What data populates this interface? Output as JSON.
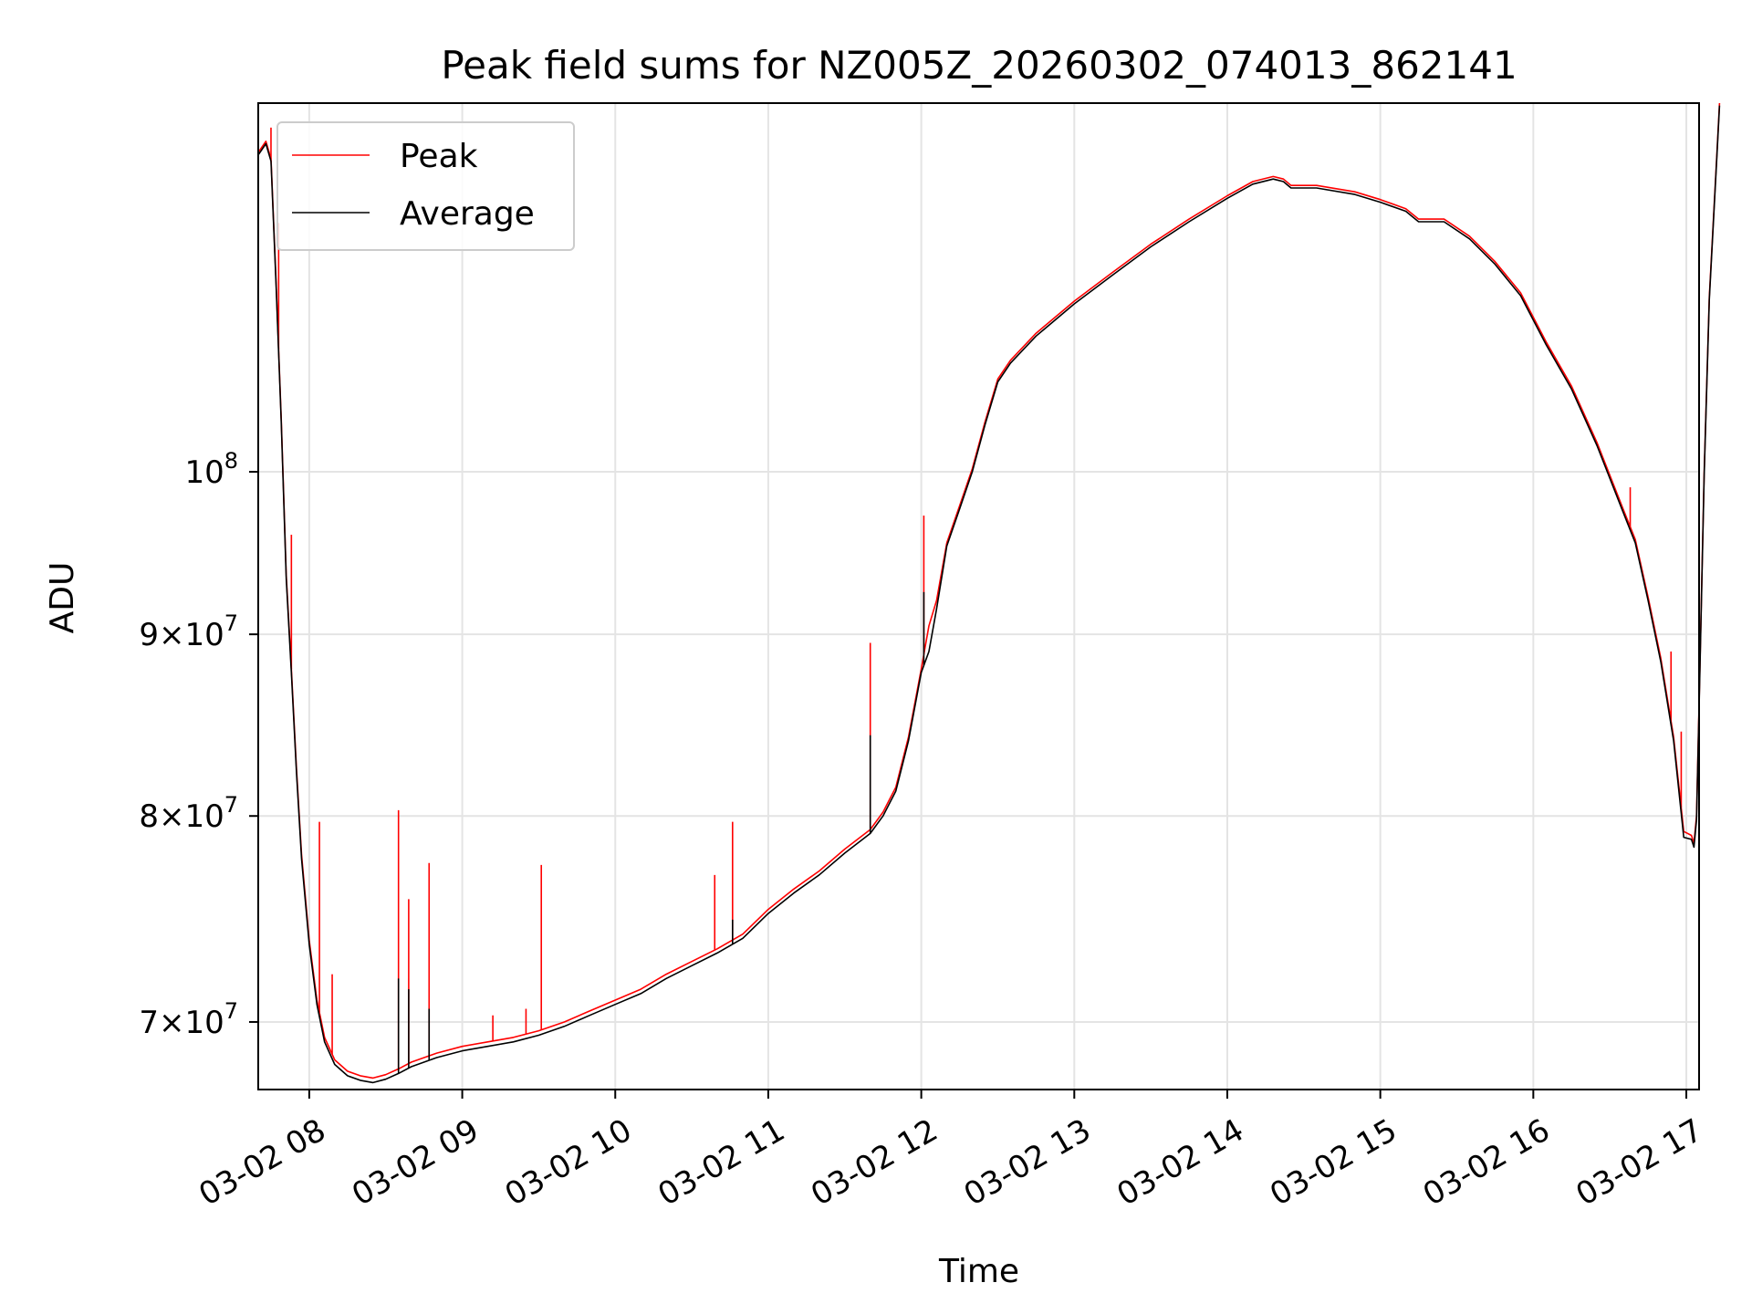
{
  "chart_data": {
    "type": "line",
    "title": "Peak field sums for NZ005Z_20260302_074013_862141",
    "xlabel": "Time",
    "ylabel": "ADU",
    "y_scale": "log",
    "ylim": [
      67000000,
      127000000
    ],
    "xlim": [
      "2026-03-02 07:40",
      "2026-03-02 17:05"
    ],
    "grid": true,
    "legend_position": "top-left",
    "x_ticks": [
      {
        "t": "2026-03-02 08:00",
        "label": "03-02 08"
      },
      {
        "t": "2026-03-02 09:00",
        "label": "03-02 09"
      },
      {
        "t": "2026-03-02 10:00",
        "label": "03-02 10"
      },
      {
        "t": "2026-03-02 11:00",
        "label": "03-02 11"
      },
      {
        "t": "2026-03-02 12:00",
        "label": "03-02 12"
      },
      {
        "t": "2026-03-02 13:00",
        "label": "03-02 13"
      },
      {
        "t": "2026-03-02 14:00",
        "label": "03-02 14"
      },
      {
        "t": "2026-03-02 15:00",
        "label": "03-02 15"
      },
      {
        "t": "2026-03-02 16:00",
        "label": "03-02 16"
      },
      {
        "t": "2026-03-02 17:00",
        "label": "03-02 17"
      }
    ],
    "y_ticks": [
      {
        "v": 70000000,
        "mant": "7",
        "exp": "7"
      },
      {
        "v": 80000000,
        "mant": "8",
        "exp": "7"
      },
      {
        "v": 90000000,
        "mant": "9",
        "exp": "7"
      },
      {
        "v": 100000000,
        "mant": "",
        "exp": "8"
      }
    ],
    "series": [
      {
        "name": "Peak",
        "color": "#ff0000",
        "points": [
          [
            "2026-03-02 07:40",
            123000000
          ],
          [
            "2026-03-02 07:43",
            123900000
          ],
          [
            "2026-03-02 07:45",
            122500000
          ],
          [
            "2026-03-02 07:47",
            113000000
          ],
          [
            "2026-03-02 07:49",
            103500000
          ],
          [
            "2026-03-02 07:51",
            93500000
          ],
          [
            "2026-03-02 07:53",
            88000000
          ],
          [
            "2026-03-02 07:55",
            82500000
          ],
          [
            "2026-03-02 07:57",
            78000000
          ],
          [
            "2026-03-02 08:00",
            73800000
          ],
          [
            "2026-03-02 08:03",
            71000000
          ],
          [
            "2026-03-02 08:06",
            69300000
          ],
          [
            "2026-03-02 08:10",
            68300000
          ],
          [
            "2026-03-02 08:15",
            67800000
          ],
          [
            "2026-03-02 08:20",
            67600000
          ],
          [
            "2026-03-02 08:25",
            67500000
          ],
          [
            "2026-03-02 08:30",
            67650000
          ],
          [
            "2026-03-02 08:35",
            67900000
          ],
          [
            "2026-03-02 08:40",
            68200000
          ],
          [
            "2026-03-02 08:50",
            68600000
          ],
          [
            "2026-03-02 09:00",
            68900000
          ],
          [
            "2026-03-02 09:10",
            69100000
          ],
          [
            "2026-03-02 09:20",
            69300000
          ],
          [
            "2026-03-02 09:30",
            69600000
          ],
          [
            "2026-03-02 09:40",
            70000000
          ],
          [
            "2026-03-02 09:50",
            70500000
          ],
          [
            "2026-03-02 10:00",
            71000000
          ],
          [
            "2026-03-02 10:10",
            71500000
          ],
          [
            "2026-03-02 10:20",
            72200000
          ],
          [
            "2026-03-02 10:30",
            72800000
          ],
          [
            "2026-03-02 10:40",
            73400000
          ],
          [
            "2026-03-02 10:50",
            74100000
          ],
          [
            "2026-03-02 11:00",
            75300000
          ],
          [
            "2026-03-02 11:10",
            76300000
          ],
          [
            "2026-03-02 11:20",
            77200000
          ],
          [
            "2026-03-02 11:30",
            78300000
          ],
          [
            "2026-03-02 11:40",
            79300000
          ],
          [
            "2026-03-02 11:45",
            80200000
          ],
          [
            "2026-03-02 11:50",
            81500000
          ],
          [
            "2026-03-02 11:55",
            84200000
          ],
          [
            "2026-03-02 12:00",
            88000000
          ],
          [
            "2026-03-02 12:03",
            90500000
          ],
          [
            "2026-03-02 12:06",
            92000000
          ],
          [
            "2026-03-02 12:10",
            95500000
          ],
          [
            "2026-03-02 12:15",
            97800000
          ],
          [
            "2026-03-02 12:20",
            100200000
          ],
          [
            "2026-03-02 12:25",
            103300000
          ],
          [
            "2026-03-02 12:30",
            106200000
          ],
          [
            "2026-03-02 12:35",
            107500000
          ],
          [
            "2026-03-02 12:45",
            109400000
          ],
          [
            "2026-03-02 13:00",
            111700000
          ],
          [
            "2026-03-02 13:15",
            113800000
          ],
          [
            "2026-03-02 13:30",
            115900000
          ],
          [
            "2026-03-02 13:45",
            117800000
          ],
          [
            "2026-03-02 14:00",
            119600000
          ],
          [
            "2026-03-02 14:10",
            120700000
          ],
          [
            "2026-03-02 14:18",
            121100000
          ],
          [
            "2026-03-02 14:22",
            120900000
          ],
          [
            "2026-03-02 14:25",
            120400000
          ],
          [
            "2026-03-02 14:35",
            120400000
          ],
          [
            "2026-03-02 14:50",
            119900000
          ],
          [
            "2026-03-02 15:00",
            119300000
          ],
          [
            "2026-03-02 15:10",
            118600000
          ],
          [
            "2026-03-02 15:15",
            117800000
          ],
          [
            "2026-03-02 15:25",
            117800000
          ],
          [
            "2026-03-02 15:35",
            116500000
          ],
          [
            "2026-03-02 15:45",
            114600000
          ],
          [
            "2026-03-02 15:55",
            112300000
          ],
          [
            "2026-03-02 16:05",
            108800000
          ],
          [
            "2026-03-02 16:15",
            105700000
          ],
          [
            "2026-03-02 16:25",
            101900000
          ],
          [
            "2026-03-02 16:35",
            97700000
          ],
          [
            "2026-03-02 16:40",
            95700000
          ],
          [
            "2026-03-02 16:45",
            92200000
          ],
          [
            "2026-03-02 16:50",
            88600000
          ],
          [
            "2026-03-02 16:55",
            84200000
          ],
          [
            "2026-03-02 16:59",
            79200000
          ],
          [
            "2026-03-02 17:02",
            79000000
          ],
          [
            "2026-03-02 17:03",
            78600000
          ],
          [
            "2026-03-02 17:04",
            80000000
          ],
          [
            "2026-03-02 17:05",
            86000000
          ],
          [
            "2026-03-02 17:07",
            100000000
          ],
          [
            "2026-03-02 17:09",
            112000000
          ],
          [
            "2026-03-02 17:12",
            123000000
          ],
          [
            "2026-03-02 17:13",
            127000000
          ]
        ],
        "spikes": [
          [
            "2026-03-02 07:45",
            125000000
          ],
          [
            "2026-03-02 07:48",
            117500000
          ],
          [
            "2026-03-02 07:53",
            96000000
          ],
          [
            "2026-03-02 08:04",
            79700000
          ],
          [
            "2026-03-02 08:09",
            72200000
          ],
          [
            "2026-03-02 08:35",
            80300000
          ],
          [
            "2026-03-02 08:39",
            75800000
          ],
          [
            "2026-03-02 08:47",
            77600000
          ],
          [
            "2026-03-02 09:12",
            70300000
          ],
          [
            "2026-03-02 09:25",
            70600000
          ],
          [
            "2026-03-02 09:31",
            77500000
          ],
          [
            "2026-03-02 10:39",
            77000000
          ],
          [
            "2026-03-02 10:46",
            79700000
          ],
          [
            "2026-03-02 11:40",
            89500000
          ],
          [
            "2026-03-02 12:01",
            97200000
          ],
          [
            "2026-03-02 16:38",
            99000000
          ],
          [
            "2026-03-02 16:54",
            89000000
          ],
          [
            "2026-03-02 16:58",
            84500000
          ]
        ]
      },
      {
        "name": "Average",
        "color": "#000000",
        "points": [
          [
            "2026-03-02 07:40",
            122800000
          ],
          [
            "2026-03-02 07:43",
            123700000
          ],
          [
            "2026-03-02 07:45",
            122300000
          ],
          [
            "2026-03-02 07:47",
            112800000
          ],
          [
            "2026-03-02 07:49",
            103300000
          ],
          [
            "2026-03-02 07:51",
            93300000
          ],
          [
            "2026-03-02 07:53",
            87800000
          ],
          [
            "2026-03-02 07:55",
            82300000
          ],
          [
            "2026-03-02 07:57",
            77800000
          ],
          [
            "2026-03-02 08:00",
            73600000
          ],
          [
            "2026-03-02 08:03",
            70800000
          ],
          [
            "2026-03-02 08:06",
            69100000
          ],
          [
            "2026-03-02 08:10",
            68100000
          ],
          [
            "2026-03-02 08:15",
            67600000
          ],
          [
            "2026-03-02 08:20",
            67400000
          ],
          [
            "2026-03-02 08:25",
            67300000
          ],
          [
            "2026-03-02 08:30",
            67450000
          ],
          [
            "2026-03-02 08:35",
            67700000
          ],
          [
            "2026-03-02 08:40",
            68000000
          ],
          [
            "2026-03-02 08:50",
            68400000
          ],
          [
            "2026-03-02 09:00",
            68700000
          ],
          [
            "2026-03-02 09:10",
            68900000
          ],
          [
            "2026-03-02 09:20",
            69100000
          ],
          [
            "2026-03-02 09:30",
            69400000
          ],
          [
            "2026-03-02 09:40",
            69800000
          ],
          [
            "2026-03-02 09:50",
            70300000
          ],
          [
            "2026-03-02 10:00",
            70800000
          ],
          [
            "2026-03-02 10:10",
            71300000
          ],
          [
            "2026-03-02 10:20",
            72000000
          ],
          [
            "2026-03-02 10:30",
            72600000
          ],
          [
            "2026-03-02 10:40",
            73200000
          ],
          [
            "2026-03-02 10:50",
            73900000
          ],
          [
            "2026-03-02 11:00",
            75100000
          ],
          [
            "2026-03-02 11:10",
            76100000
          ],
          [
            "2026-03-02 11:20",
            77000000
          ],
          [
            "2026-03-02 11:30",
            78100000
          ],
          [
            "2026-03-02 11:40",
            79100000
          ],
          [
            "2026-03-02 11:45",
            80000000
          ],
          [
            "2026-03-02 11:50",
            81300000
          ],
          [
            "2026-03-02 11:55",
            84000000
          ],
          [
            "2026-03-02 12:00",
            87800000
          ],
          [
            "2026-03-02 12:03",
            89000000
          ],
          [
            "2026-03-02 12:06",
            91500000
          ],
          [
            "2026-03-02 12:10",
            95300000
          ],
          [
            "2026-03-02 12:15",
            97600000
          ],
          [
            "2026-03-02 12:20",
            100000000
          ],
          [
            "2026-03-02 12:25",
            103100000
          ],
          [
            "2026-03-02 12:30",
            106000000
          ],
          [
            "2026-03-02 12:35",
            107300000
          ],
          [
            "2026-03-02 12:45",
            109200000
          ],
          [
            "2026-03-02 13:00",
            111500000
          ],
          [
            "2026-03-02 13:15",
            113600000
          ],
          [
            "2026-03-02 13:30",
            115700000
          ],
          [
            "2026-03-02 13:45",
            117600000
          ],
          [
            "2026-03-02 14:00",
            119400000
          ],
          [
            "2026-03-02 14:10",
            120500000
          ],
          [
            "2026-03-02 14:18",
            120900000
          ],
          [
            "2026-03-02 14:22",
            120700000
          ],
          [
            "2026-03-02 14:25",
            120200000
          ],
          [
            "2026-03-02 14:35",
            120200000
          ],
          [
            "2026-03-02 14:50",
            119700000
          ],
          [
            "2026-03-02 15:00",
            119100000
          ],
          [
            "2026-03-02 15:10",
            118400000
          ],
          [
            "2026-03-02 15:15",
            117600000
          ],
          [
            "2026-03-02 15:25",
            117600000
          ],
          [
            "2026-03-02 15:35",
            116300000
          ],
          [
            "2026-03-02 15:45",
            114400000
          ],
          [
            "2026-03-02 15:55",
            112100000
          ],
          [
            "2026-03-02 16:05",
            108600000
          ],
          [
            "2026-03-02 16:15",
            105500000
          ],
          [
            "2026-03-02 16:25",
            101700000
          ],
          [
            "2026-03-02 16:35",
            97500000
          ],
          [
            "2026-03-02 16:40",
            95500000
          ],
          [
            "2026-03-02 16:45",
            92000000
          ],
          [
            "2026-03-02 16:50",
            88400000
          ],
          [
            "2026-03-02 16:55",
            84000000
          ],
          [
            "2026-03-02 16:59",
            78900000
          ],
          [
            "2026-03-02 17:02",
            78800000
          ],
          [
            "2026-03-02 17:03",
            78400000
          ],
          [
            "2026-03-02 17:04",
            79800000
          ],
          [
            "2026-03-02 17:05",
            85800000
          ],
          [
            "2026-03-02 17:07",
            99800000
          ],
          [
            "2026-03-02 17:09",
            111800000
          ],
          [
            "2026-03-02 17:12",
            122800000
          ],
          [
            "2026-03-02 17:13",
            126800000
          ]
        ],
        "spikes": [
          [
            "2026-03-02 08:35",
            72000000
          ],
          [
            "2026-03-02 08:39",
            71500000
          ],
          [
            "2026-03-02 08:47",
            70600000
          ],
          [
            "2026-03-02 10:46",
            74800000
          ],
          [
            "2026-03-02 11:40",
            84300000
          ],
          [
            "2026-03-02 12:01",
            92500000
          ]
        ]
      }
    ]
  }
}
